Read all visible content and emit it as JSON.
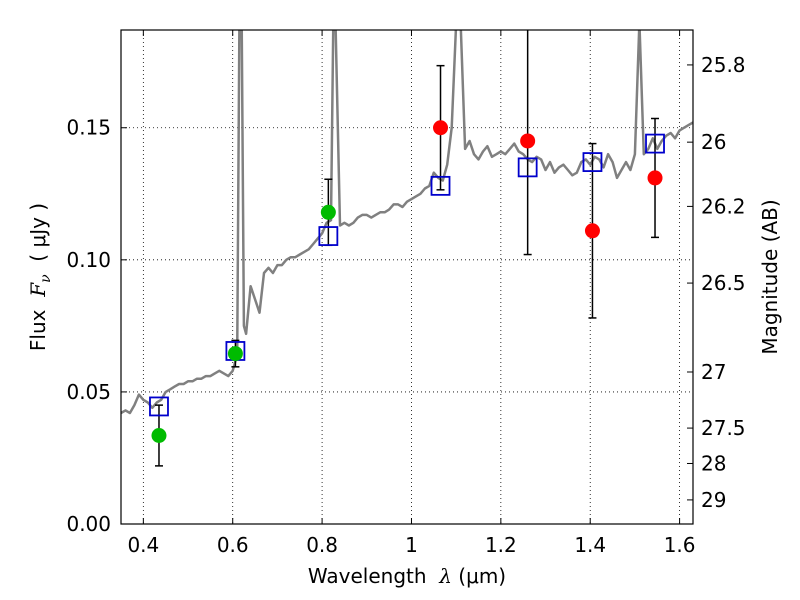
{
  "chart_data": {
    "type": "scatter",
    "xlabel": {
      "prefix": "Wavelength  ",
      "symbol": "λ",
      "unit": " (μm)"
    },
    "ylabel": {
      "prefix": "Flux  ",
      "symbol": "F",
      "subscript": "ν",
      "unit": "  ( μJy )"
    },
    "y2label": "Magnitude (AB)",
    "xlim": [
      0.35,
      1.63
    ],
    "ylim": [
      0.0,
      0.187
    ],
    "grid": true,
    "x_ticks": [
      {
        "value": 0.4,
        "label": "0.4"
      },
      {
        "value": 0.6,
        "label": "0.6"
      },
      {
        "value": 0.8,
        "label": "0.8"
      },
      {
        "value": 1.0,
        "label": "1"
      },
      {
        "value": 1.2,
        "label": "1.2"
      },
      {
        "value": 1.4,
        "label": "1.4"
      },
      {
        "value": 1.6,
        "label": "1.6"
      }
    ],
    "y_ticks": [
      {
        "value": 0.0,
        "label": "0.00"
      },
      {
        "value": 0.05,
        "label": "0.05"
      },
      {
        "value": 0.1,
        "label": "0.10"
      },
      {
        "value": 0.15,
        "label": "0.15"
      }
    ],
    "y2_ticks": [
      {
        "value": 25.8,
        "label": "25.8"
      },
      {
        "value": 26.0,
        "label": "26"
      },
      {
        "value": 26.2,
        "label": "26.2"
      },
      {
        "value": 26.5,
        "label": "26.5"
      },
      {
        "value": 27.0,
        "label": "27"
      },
      {
        "value": 27.5,
        "label": "27.5"
      },
      {
        "value": 28.0,
        "label": "28"
      },
      {
        "value": 29.0,
        "label": "29"
      }
    ],
    "colors": {
      "template": "#808080",
      "green_points": "#00bb00",
      "red_points": "#ff0000",
      "model_boxes": "#0000cc",
      "errorbars": "#000000",
      "grid": "#000000"
    },
    "series": [
      {
        "marker": "circle-green",
        "x": [
          0.435,
          0.606,
          0.814
        ],
        "y": [
          0.0335,
          0.0645,
          0.118
        ],
        "yerr": [
          0.0115,
          0.005,
          0.0125
        ]
      },
      {
        "marker": "circle-red",
        "x": [
          1.065,
          1.26,
          1.405,
          1.545
        ],
        "y": [
          0.15,
          0.145,
          0.111,
          0.131
        ],
        "yerr": [
          0.0235,
          0.043,
          0.033,
          0.0225
        ]
      },
      {
        "marker": "open-square-blue",
        "x": [
          0.435,
          0.606,
          0.814,
          1.065,
          1.26,
          1.405,
          1.545
        ],
        "y": [
          0.0445,
          0.0655,
          0.109,
          0.128,
          0.135,
          0.137,
          0.144
        ]
      },
      {
        "marker": "line-gray",
        "x": [
          0.35,
          0.36,
          0.37,
          0.38,
          0.39,
          0.4,
          0.41,
          0.42,
          0.43,
          0.44,
          0.45,
          0.46,
          0.47,
          0.48,
          0.49,
          0.5,
          0.51,
          0.52,
          0.53,
          0.54,
          0.55,
          0.56,
          0.57,
          0.58,
          0.59,
          0.6,
          0.61,
          0.615,
          0.62,
          0.625,
          0.63,
          0.64,
          0.65,
          0.66,
          0.67,
          0.68,
          0.69,
          0.7,
          0.71,
          0.72,
          0.73,
          0.74,
          0.75,
          0.76,
          0.77,
          0.78,
          0.79,
          0.8,
          0.81,
          0.82,
          0.825,
          0.83,
          0.84,
          0.85,
          0.86,
          0.87,
          0.88,
          0.89,
          0.9,
          0.91,
          0.92,
          0.93,
          0.94,
          0.95,
          0.96,
          0.97,
          0.98,
          0.99,
          1.0,
          1.01,
          1.02,
          1.03,
          1.04,
          1.05,
          1.06,
          1.07,
          1.08,
          1.09,
          1.1,
          1.11,
          1.12,
          1.13,
          1.14,
          1.15,
          1.16,
          1.17,
          1.18,
          1.19,
          1.2,
          1.21,
          1.22,
          1.23,
          1.24,
          1.25,
          1.26,
          1.27,
          1.28,
          1.29,
          1.3,
          1.31,
          1.32,
          1.33,
          1.34,
          1.35,
          1.36,
          1.37,
          1.38,
          1.39,
          1.4,
          1.41,
          1.42,
          1.43,
          1.44,
          1.45,
          1.46,
          1.47,
          1.48,
          1.49,
          1.5,
          1.51,
          1.52,
          1.53,
          1.54,
          1.55,
          1.56,
          1.57,
          1.58,
          1.59,
          1.6,
          1.61,
          1.62,
          1.63
        ],
        "y": [
          0.042,
          0.043,
          0.042,
          0.045,
          0.049,
          0.047,
          0.046,
          0.044,
          0.046,
          0.047,
          0.05,
          0.051,
          0.052,
          0.053,
          0.053,
          0.054,
          0.054,
          0.055,
          0.055,
          0.056,
          0.056,
          0.057,
          0.058,
          0.057,
          0.056,
          0.058,
          0.064,
          0.19,
          0.19,
          0.075,
          0.072,
          0.09,
          0.085,
          0.08,
          0.095,
          0.097,
          0.095,
          0.098,
          0.098,
          0.1,
          0.101,
          0.101,
          0.102,
          0.103,
          0.104,
          0.106,
          0.108,
          0.11,
          0.114,
          0.115,
          0.19,
          0.19,
          0.113,
          0.114,
          0.113,
          0.114,
          0.116,
          0.117,
          0.117,
          0.116,
          0.117,
          0.118,
          0.118,
          0.119,
          0.121,
          0.121,
          0.12,
          0.122,
          0.123,
          0.124,
          0.125,
          0.127,
          0.128,
          0.133,
          0.131,
          0.13,
          0.136,
          0.15,
          0.19,
          0.19,
          0.142,
          0.145,
          0.14,
          0.138,
          0.141,
          0.143,
          0.139,
          0.14,
          0.141,
          0.14,
          0.142,
          0.144,
          0.141,
          0.14,
          0.138,
          0.137,
          0.139,
          0.138,
          0.134,
          0.137,
          0.133,
          0.135,
          0.136,
          0.134,
          0.132,
          0.133,
          0.137,
          0.138,
          0.136,
          0.139,
          0.138,
          0.135,
          0.14,
          0.137,
          0.131,
          0.134,
          0.137,
          0.134,
          0.14,
          0.19,
          0.14,
          0.142,
          0.146,
          0.142,
          0.145,
          0.147,
          0.148,
          0.146,
          0.149,
          0.15,
          0.151,
          0.152
        ]
      }
    ]
  }
}
